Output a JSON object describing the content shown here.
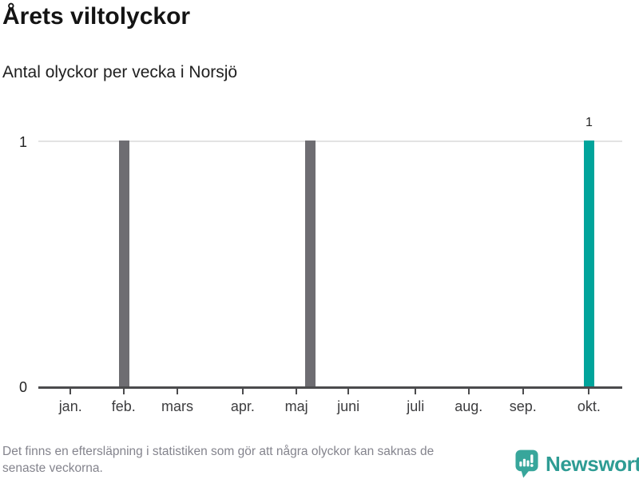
{
  "chart_data": {
    "type": "bar",
    "title": "Årets viltolyckor",
    "subtitle": "Antal olyckor per vecka i Norsjö",
    "xlabel": "",
    "ylabel": "",
    "ylim": [
      0,
      1
    ],
    "grid": "horizontal-at-max-only",
    "legend": "none",
    "x_unit": "vecka",
    "x_slots": 44,
    "y_axis": {
      "max_label": "1",
      "min_label": "0"
    },
    "months": [
      {
        "label": "jan.",
        "pos": 0.055
      },
      {
        "label": "feb.",
        "pos": 0.146
      },
      {
        "label": "mars",
        "pos": 0.238
      },
      {
        "label": "apr.",
        "pos": 0.35
      },
      {
        "label": "maj",
        "pos": 0.442
      },
      {
        "label": "juni",
        "pos": 0.531
      },
      {
        "label": "juli",
        "pos": 0.646
      },
      {
        "label": "aug.",
        "pos": 0.737
      },
      {
        "label": "sep.",
        "pos": 0.83
      },
      {
        "label": "okt.",
        "pos": 0.943
      }
    ],
    "bars": [
      {
        "week": 6,
        "month": "feb.",
        "value": 1,
        "series": "past_weeks",
        "label": ""
      },
      {
        "week": 20,
        "month": "maj",
        "value": 1,
        "series": "past_weeks",
        "label": ""
      },
      {
        "week": 41,
        "month": "okt.",
        "value": 1,
        "series": "latest_week",
        "label": "1"
      }
    ],
    "colors": {
      "past_weeks": "#6e6d72",
      "latest_week": "#00a49b",
      "gridline": "#e3e3e3",
      "axis": "#4b4b4d"
    }
  },
  "footer": {
    "lines": [
      "Det finns en eftersläpning i statistiken som gör att några olyckor kan saknas de",
      "senaste veckorna."
    ]
  },
  "brand": {
    "name": "Newsworthy",
    "text_color": "#2e9c94",
    "icon_color": "#38a69b",
    "icon": "newsworthy-logo"
  }
}
